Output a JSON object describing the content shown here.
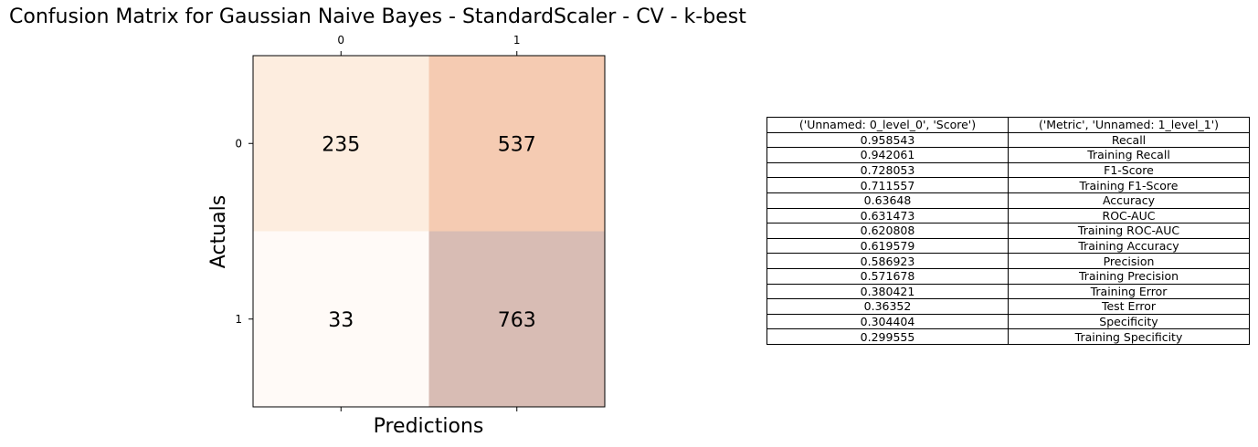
{
  "chart_data": [
    {
      "type": "heatmap",
      "title": "Confusion Matrix for Gaussian Naive Bayes - StandardScaler - CV - k-best",
      "xlabel": "Predictions",
      "ylabel": "Actuals",
      "x_ticks": [
        "0",
        "1"
      ],
      "y_ticks": [
        "0",
        "1"
      ],
      "values": [
        [
          235,
          537
        ],
        [
          33,
          763
        ]
      ],
      "cell_colors": [
        [
          "#fdeddf",
          "#f5cbb2"
        ],
        [
          "#fffaf7",
          "#d8bcb4"
        ]
      ]
    },
    {
      "type": "table",
      "columns": [
        "('Unnamed: 0_level_0', 'Score')",
        "('Metric', 'Unnamed: 1_level_1')"
      ],
      "rows": [
        [
          "0.958543",
          "Recall"
        ],
        [
          "0.942061",
          "Training Recall"
        ],
        [
          "0.728053",
          "F1-Score"
        ],
        [
          "0.711557",
          "Training F1-Score"
        ],
        [
          "0.63648",
          "Accuracy"
        ],
        [
          "0.631473",
          "ROC-AUC"
        ],
        [
          "0.620808",
          "Training ROC-AUC"
        ],
        [
          "0.619579",
          "Training Accuracy"
        ],
        [
          "0.586923",
          "Precision"
        ],
        [
          "0.571678",
          "Training Precision"
        ],
        [
          "0.380421",
          "Training Error"
        ],
        [
          "0.36352",
          "Test Error"
        ],
        [
          "0.304404",
          "Specificity"
        ],
        [
          "0.299555",
          "Training Specificity"
        ]
      ]
    }
  ]
}
